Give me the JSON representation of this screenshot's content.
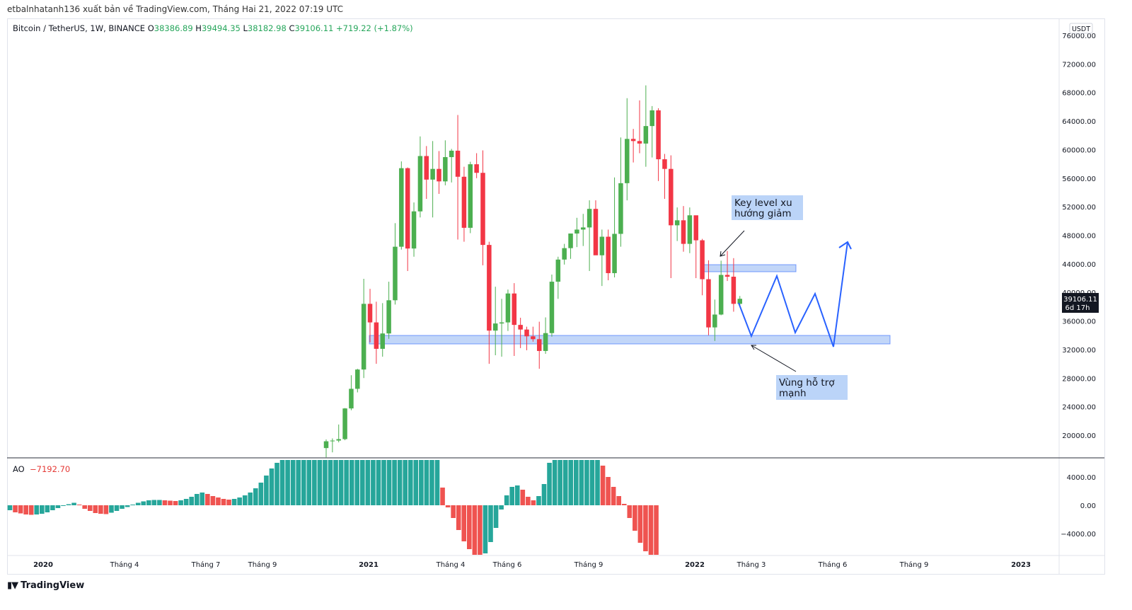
{
  "publisher_line": "etbalnhatanh136 xuất bản về TradingView.com, Tháng Hai 21, 2022 07:19 UTC",
  "legend": {
    "symbol": "Bitcoin / TetherUS, 1W, BINANCE",
    "o_label": "O",
    "o_value": "38386.89",
    "h_label": "H",
    "h_value": "39494.35",
    "l_label": "L",
    "l_value": "38182.98",
    "c_label": "C",
    "c_value": "39106.11",
    "change": "+719.22 (+1.87%)"
  },
  "ao_legend": {
    "name": "AO",
    "value": "−7192.70"
  },
  "currency_badge": "USDT",
  "price_badge": {
    "price": "39106.11",
    "countdown": "6d 17h"
  },
  "annotations": {
    "key_level": "Key level xu hướng giảm",
    "support": "Vùng hỗ trợ mạnh"
  },
  "brand": "TradingView",
  "colors": {
    "up": "#4caf50",
    "down": "#f23645",
    "ao_up": "#26a69a",
    "ao_down": "#ef5350",
    "zone": "#adc8f5",
    "projection": "#2962ff"
  },
  "chart_data": {
    "type": "candlestick",
    "symbol": "BTCUSDT",
    "interval": "1W",
    "price_axis": {
      "ticks": [
        "76000.00",
        "72000.00",
        "68000.00",
        "64000.00",
        "60000.00",
        "56000.00",
        "52000.00",
        "48000.00",
        "44000.00",
        "40000.00",
        "36000.00",
        "32000.00",
        "28000.00",
        "24000.00",
        "20000.00"
      ]
    },
    "ao_axis": {
      "ticks": [
        "4000.00",
        "0.00",
        "−4000.00"
      ]
    },
    "time_axis": {
      "labels": [
        "2020",
        "Tháng 4",
        "Tháng 7",
        "Tháng 9",
        "2021",
        "Tháng 4",
        "Tháng 6",
        "Tháng 9",
        "2022",
        "Tháng 3",
        "Tháng 6",
        "Tháng 9",
        "2023"
      ]
    },
    "candles_ohlc_weekly_from_2020_11_23": [
      [
        18200,
        19400,
        16900,
        19150
      ],
      [
        19150,
        19550,
        17600,
        19250
      ],
      [
        19250,
        21500,
        19000,
        19450
      ],
      [
        19450,
        23800,
        19300,
        23750
      ],
      [
        23750,
        28400,
        23500,
        26500
      ],
      [
        26500,
        29300,
        26000,
        29200
      ],
      [
        29200,
        41900,
        28000,
        38400
      ],
      [
        38400,
        40500,
        33000,
        35800
      ],
      [
        35800,
        38700,
        30000,
        32100
      ],
      [
        32100,
        38500,
        31000,
        34250
      ],
      [
        34250,
        41500,
        33500,
        38900
      ],
      [
        38900,
        49700,
        38300,
        46400
      ],
      [
        46400,
        58350,
        46000,
        57400
      ],
      [
        57400,
        57500,
        43000,
        46150
      ],
      [
        46150,
        52600,
        45000,
        51350
      ],
      [
        51350,
        61850,
        50500,
        59100
      ],
      [
        59100,
        60500,
        53100,
        55800
      ],
      [
        55800,
        61200,
        50500,
        57300
      ],
      [
        57300,
        59800,
        53800,
        55550
      ],
      [
        55550,
        61300,
        55000,
        58950
      ],
      [
        58950,
        60100,
        55400,
        59850
      ],
      [
        59850,
        64850,
        47400,
        56200
      ],
      [
        56200,
        57600,
        47100,
        49050
      ],
      [
        49050,
        58300,
        48300,
        57950
      ],
      [
        57950,
        59500,
        56000,
        56750
      ],
      [
        56750,
        59900,
        43800,
        46650
      ],
      [
        46650,
        47100,
        30000,
        34650
      ],
      [
        34650,
        40800,
        31200,
        35650
      ],
      [
        35650,
        39100,
        31000,
        35800
      ],
      [
        35800,
        40400,
        34600,
        39850
      ],
      [
        39850,
        41300,
        31100,
        35450
      ],
      [
        35450,
        36450,
        32200,
        34800
      ],
      [
        34800,
        35200,
        31900,
        33850
      ],
      [
        33850,
        35200,
        33100,
        33450
      ],
      [
        33450,
        35900,
        29300,
        31800
      ],
      [
        31800,
        36500,
        31400,
        34300
      ],
      [
        34300,
        42500,
        33800,
        41500
      ],
      [
        41500,
        45000,
        39100,
        44600
      ],
      [
        44600,
        46800,
        43900,
        46200
      ],
      [
        46200,
        48200,
        44700,
        48250
      ],
      [
        48250,
        50450,
        46350,
        48800
      ],
      [
        48800,
        51000,
        46500,
        49100
      ],
      [
        49100,
        52900,
        43000,
        51700
      ],
      [
        51700,
        52900,
        46800,
        45200
      ],
      [
        45200,
        48800,
        40900,
        47800
      ],
      [
        47800,
        48800,
        41700,
        42700
      ],
      [
        42700,
        56100,
        42100,
        48200
      ],
      [
        48200,
        61700,
        46400,
        55300
      ],
      [
        55300,
        67200,
        52900,
        61500
      ],
      [
        61500,
        62900,
        58200,
        61200
      ],
      [
        61200,
        66900,
        59500,
        60850
      ],
      [
        60850,
        69000,
        57600,
        63300
      ],
      [
        63300,
        66100,
        58900,
        65500
      ],
      [
        65500,
        65800,
        55600,
        58650
      ],
      [
        58650,
        59400,
        53100,
        57300
      ],
      [
        57300,
        59200,
        42000,
        49400
      ],
      [
        49400,
        51900,
        47200,
        50100
      ],
      [
        50100,
        52100,
        45700,
        46800
      ],
      [
        46800,
        51900,
        45500,
        50800
      ],
      [
        50800,
        47600,
        42000,
        47300
      ],
      [
        47300,
        47500,
        39600,
        41850
      ],
      [
        41850,
        44500,
        34000,
        35100
      ],
      [
        35100,
        39000,
        33200,
        36900
      ],
      [
        36900,
        44450,
        36800,
        42450
      ],
      [
        42450,
        45800,
        41600,
        42200
      ],
      [
        42200,
        44800,
        37300,
        38400
      ],
      [
        38400,
        39500,
        38200,
        39106
      ]
    ],
    "ao_histogram_start_2019_12": [
      -700,
      -1000,
      -1150,
      -1300,
      -1350,
      -1300,
      -1200,
      -1000,
      -700,
      -400,
      -100,
      150,
      350,
      100,
      -500,
      -800,
      -1100,
      -1200,
      -1250,
      -1050,
      -800,
      -500,
      -250,
      100,
      350,
      550,
      700,
      750,
      750,
      700,
      650,
      600,
      700,
      900,
      1200,
      1600,
      1800,
      1600,
      1300,
      1100,
      900,
      800,
      900,
      1100,
      1400,
      1800,
      2400,
      3200,
      4200,
      5200,
      6000,
      6400,
      6400,
      6400,
      6400,
      6400,
      6400,
      6400,
      6400,
      6400,
      6400,
      6400,
      6400,
      6400,
      6400,
      6400,
      6400,
      6400,
      6400,
      6400,
      6400,
      6400,
      6400,
      6400,
      6400,
      6400,
      6400,
      6400,
      6400,
      6400,
      6400,
      2500,
      -300,
      -1800,
      -3500,
      -5100,
      -6200,
      -7300,
      -7400,
      -6800,
      -5200,
      -3200,
      -600,
      1400,
      2600,
      2800,
      2200,
      1200,
      700,
      1300,
      3000,
      6000,
      6400,
      6400,
      6400,
      6400,
      6400,
      6400,
      6400,
      6400,
      6400,
      5600,
      4000,
      2600,
      1300,
      200,
      -1800,
      -3600,
      -5300,
      -6500,
      -7000,
      -7192
    ]
  }
}
